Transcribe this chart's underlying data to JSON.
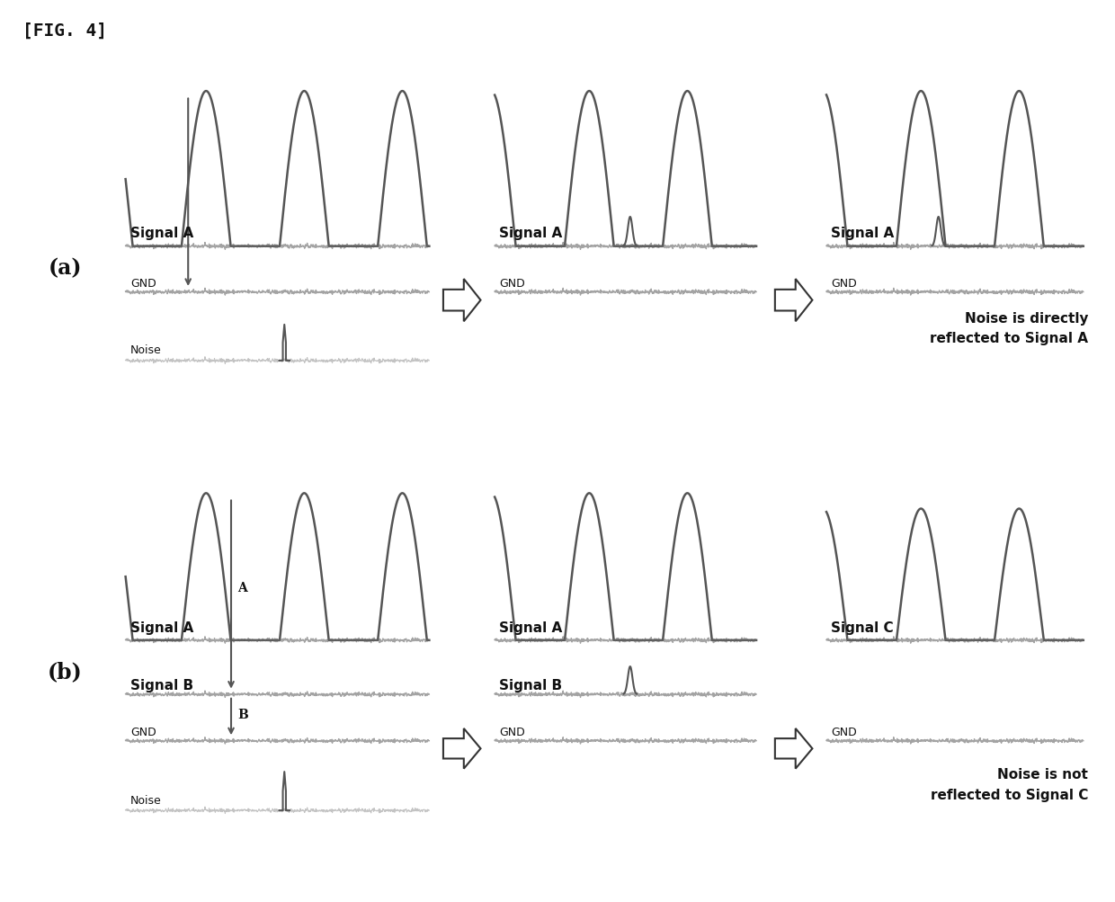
{
  "fig_label": "[FIG. 4]",
  "background_color": "#ffffff",
  "signal_color": "#555555",
  "noise_color": "#888888",
  "line_color": "#666666",
  "arrow_color": "#333333",
  "text_color": "#111111",
  "panel_a_label": "(a)",
  "panel_b_label": "(b)",
  "note_a": "Noise is directly\nreflected to Signal A",
  "note_b": "Noise is not\nreflected to Signal C",
  "signal_a_label": "Signal A",
  "signal_b_label": "Signal B",
  "signal_c_label": "Signal C",
  "gnd_label": "GND",
  "noise_label": "Noise",
  "label_A": "A",
  "label_B": "B"
}
